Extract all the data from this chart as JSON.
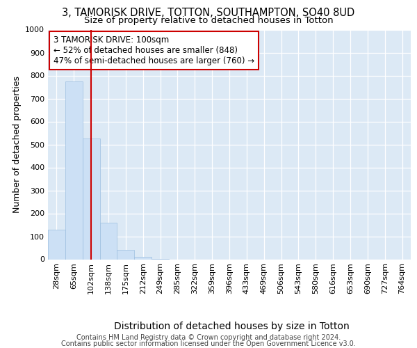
{
  "title_line1": "3, TAMORISK DRIVE, TOTTON, SOUTHAMPTON, SO40 8UD",
  "title_line2": "Size of property relative to detached houses in Totton",
  "xlabel": "Distribution of detached houses by size in Totton",
  "ylabel": "Number of detached properties",
  "categories": [
    "28sqm",
    "65sqm",
    "102sqm",
    "138sqm",
    "175sqm",
    "212sqm",
    "249sqm",
    "285sqm",
    "322sqm",
    "359sqm",
    "396sqm",
    "433sqm",
    "469sqm",
    "506sqm",
    "543sqm",
    "580sqm",
    "616sqm",
    "653sqm",
    "690sqm",
    "727sqm",
    "764sqm"
  ],
  "values": [
    130,
    775,
    525,
    160,
    40,
    10,
    2,
    0,
    0,
    0,
    0,
    0,
    0,
    0,
    0,
    0,
    0,
    0,
    0,
    0,
    0
  ],
  "bar_color": "#cce0f5",
  "bar_edge_color": "#9dbfe0",
  "property_line_x": 2.0,
  "property_line_color": "#cc0000",
  "annotation_text": "3 TAMORISK DRIVE: 100sqm\n← 52% of detached houses are smaller (848)\n47% of semi-detached houses are larger (760) →",
  "annotation_box_color": "#ffffff",
  "annotation_box_edge": "#cc0000",
  "ylim": [
    0,
    1000
  ],
  "yticks": [
    0,
    100,
    200,
    300,
    400,
    500,
    600,
    700,
    800,
    900,
    1000
  ],
  "plot_bg_color": "#dce9f5",
  "footer_line1": "Contains HM Land Registry data © Crown copyright and database right 2024.",
  "footer_line2": "Contains public sector information licensed under the Open Government Licence v3.0.",
  "title_fontsize": 10.5,
  "subtitle_fontsize": 9.5,
  "xlabel_fontsize": 10,
  "ylabel_fontsize": 9,
  "tick_fontsize": 8,
  "annotation_fontsize": 8.5,
  "footer_fontsize": 7
}
